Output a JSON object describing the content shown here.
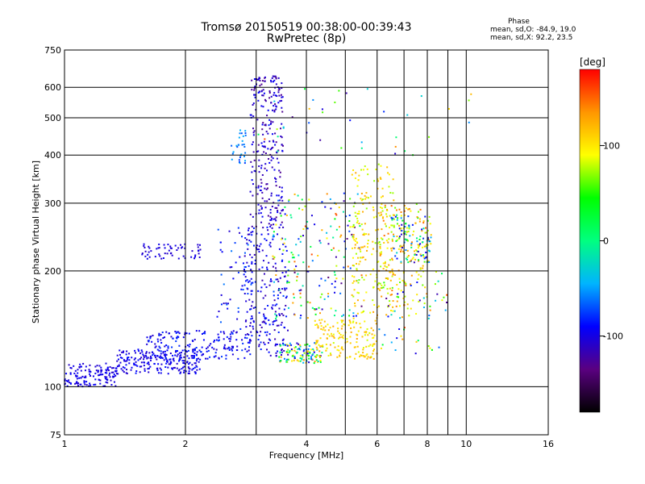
{
  "chart_data": {
    "type": "scatter",
    "title": "Tromsø 20150519 00:38:00-00:39:43",
    "subtitle": "RwPretec (8p)",
    "xlabel": "Frequency [MHz]",
    "ylabel": "Stationary phase Virtual Height [km]",
    "x_scale": "log",
    "y_scale": "log",
    "xlim": [
      1,
      16
    ],
    "ylim": [
      75,
      750
    ],
    "x_ticks": [
      1,
      2,
      4,
      6,
      8,
      10,
      16
    ],
    "x_gridlines": [
      2,
      3,
      4,
      5,
      6,
      7,
      8,
      9,
      10
    ],
    "y_ticks": [
      75,
      100,
      200,
      300,
      400,
      500,
      600,
      750
    ],
    "y_gridlines": [
      100,
      200,
      300,
      400,
      500,
      600
    ],
    "grid": true,
    "phase_stats": {
      "heading": "Phase",
      "o_line": "mean, sd,O: -84.9, 19.0",
      "x_line": "mean, sd,X:  92.2, 23.5"
    },
    "colorbar": {
      "label": "[deg]",
      "ticks": [
        100,
        0,
        -100
      ],
      "range": [
        -180,
        180
      ],
      "colors": [
        "#000000",
        "#5a0080",
        "#0000ff",
        "#00b4ff",
        "#00ff80",
        "#00ff00",
        "#ffff00",
        "#ff9600",
        "#ff0000"
      ]
    },
    "series": [
      {
        "color_by": "phase",
        "clusters": [
          {
            "x": [
              1.0,
              1.35
            ],
            "y": [
              100,
              115
            ],
            "phase": [
              -110,
              -90
            ],
            "n": 140
          },
          {
            "x": [
              1.35,
              2.2
            ],
            "y": [
              108,
              125
            ],
            "phase": [
              -110,
              -85
            ],
            "n": 220
          },
          {
            "x": [
              1.6,
              2.9
            ],
            "y": [
              118,
              140
            ],
            "phase": [
              -110,
              -75
            ],
            "n": 180
          },
          {
            "x": [
              1.55,
              2.2
            ],
            "y": [
              215,
              235
            ],
            "phase": [
              -110,
              -95
            ],
            "n": 60
          },
          {
            "x": [
              2.6,
              2.85
            ],
            "y": [
              380,
              470
            ],
            "phase": [
              -80,
              -40
            ],
            "n": 30
          },
          {
            "x": [
              2.4,
              3.0
            ],
            "y": [
              140,
              260
            ],
            "phase": [
              -110,
              -60
            ],
            "n": 60
          },
          {
            "x": [
              2.9,
              3.5
            ],
            "y": [
              260,
              650
            ],
            "phase": [
              -130,
              -90
            ],
            "n": 260
          },
          {
            "x": [
              2.8,
              3.6
            ],
            "y": [
              120,
              260
            ],
            "phase": [
              -120,
              -80
            ],
            "n": 220
          },
          {
            "x": [
              3.4,
              4.4
            ],
            "y": [
              115,
              130
            ],
            "phase": [
              -120,
              140
            ],
            "n": 120
          },
          {
            "x": [
              3.3,
              5.5
            ],
            "y": [
              150,
              320
            ],
            "phase": [
              -140,
              160
            ],
            "n": 200
          },
          {
            "x": [
              4.2,
              6.0
            ],
            "y": [
              118,
              150
            ],
            "phase": [
              80,
              130
            ],
            "n": 160
          },
          {
            "x": [
              5.2,
              6.6
            ],
            "y": [
              150,
              380
            ],
            "phase": [
              70,
              130
            ],
            "n": 200
          },
          {
            "x": [
              6.0,
              8.0
            ],
            "y": [
              160,
              300
            ],
            "phase": [
              60,
              150
            ],
            "n": 150
          },
          {
            "x": [
              6.5,
              8.2
            ],
            "y": [
              210,
              280
            ],
            "phase": [
              -120,
              130
            ],
            "n": 120
          },
          {
            "x": [
              6.0,
              9.0
            ],
            "y": [
              120,
              200
            ],
            "phase": [
              -140,
              160
            ],
            "n": 60
          },
          {
            "x": [
              3.0,
              11.0
            ],
            "y": [
              400,
              620
            ],
            "phase": [
              -130,
              160
            ],
            "n": 40
          }
        ]
      }
    ]
  }
}
